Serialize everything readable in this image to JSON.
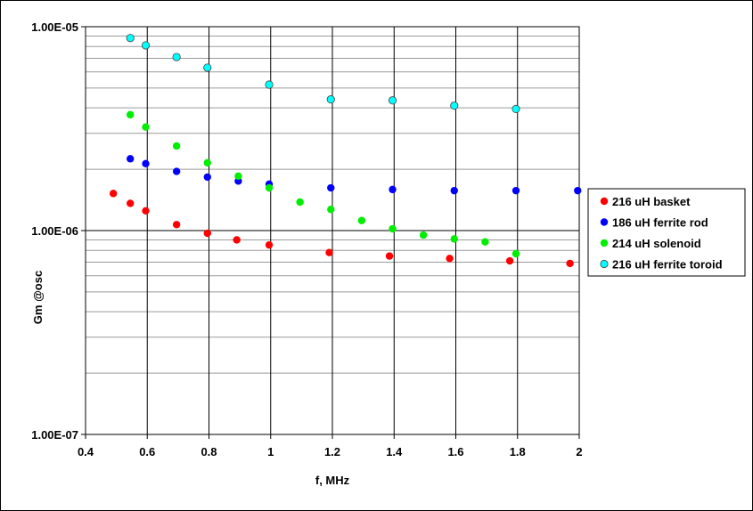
{
  "chart_data": {
    "type": "scatter",
    "title": "",
    "xlabel": "f, MHz",
    "ylabel": "Gm @osc",
    "x_scale": "linear",
    "y_scale": "log",
    "xlim": [
      0.4,
      2.0
    ],
    "ylim": [
      1e-07,
      1e-05
    ],
    "x_ticks": [
      0.4,
      0.6,
      0.8,
      1.0,
      1.2,
      1.4,
      1.6,
      1.8,
      2.0
    ],
    "x_tick_labels": [
      "0.4",
      "0.6",
      "0.8",
      "1",
      "1.2",
      "1.4",
      "1.6",
      "1.8",
      "2"
    ],
    "y_ticks": [
      1e-07,
      1e-06,
      1e-05
    ],
    "y_tick_labels": [
      "1.00E-07",
      "1.00E-06",
      "1.00E-05"
    ],
    "grid": true,
    "legend_position": "right",
    "series": [
      {
        "name": "216 uH basket",
        "color": "#ff0000",
        "x": [
          0.49,
          0.545,
          0.595,
          0.695,
          0.795,
          0.89,
          0.995,
          1.19,
          1.385,
          1.58,
          1.775,
          1.97
        ],
        "y": [
          1.52e-06,
          1.36e-06,
          1.25e-06,
          1.07e-06,
          9.7e-07,
          9e-07,
          8.5e-07,
          7.8e-07,
          7.5e-07,
          7.3e-07,
          7.1e-07,
          6.9e-07
        ]
      },
      {
        "name": "186 uH ferrite rod",
        "color": "#0000ff",
        "x": [
          0.545,
          0.595,
          0.695,
          0.795,
          0.895,
          0.995,
          1.195,
          1.395,
          1.595,
          1.795,
          1.995
        ],
        "y": [
          2.25e-06,
          2.13e-06,
          1.95e-06,
          1.83e-06,
          1.75e-06,
          1.69e-06,
          1.62e-06,
          1.59e-06,
          1.57e-06,
          1.57e-06,
          1.57e-06
        ]
      },
      {
        "name": "214 uH solenoid",
        "color": "#00ee00",
        "x": [
          0.545,
          0.595,
          0.695,
          0.795,
          0.895,
          0.995,
          1.095,
          1.195,
          1.295,
          1.395,
          1.495,
          1.595,
          1.695,
          1.795
        ],
        "y": [
          3.7e-06,
          3.22e-06,
          2.6e-06,
          2.15e-06,
          1.85e-06,
          1.62e-06,
          1.38e-06,
          1.27e-06,
          1.12e-06,
          1.02e-06,
          9.5e-07,
          9.1e-07,
          8.8e-07,
          7.7e-07
        ]
      },
      {
        "name": "216 uH ferrite toroid",
        "color": "#00ffff",
        "x": [
          0.545,
          0.595,
          0.695,
          0.795,
          0.995,
          1.195,
          1.395,
          1.595,
          1.795
        ],
        "y": [
          8.8e-06,
          8.1e-06,
          7.1e-06,
          6.3e-06,
          5.2e-06,
          4.4e-06,
          4.35e-06,
          4.1e-06,
          3.95e-06
        ]
      }
    ]
  }
}
